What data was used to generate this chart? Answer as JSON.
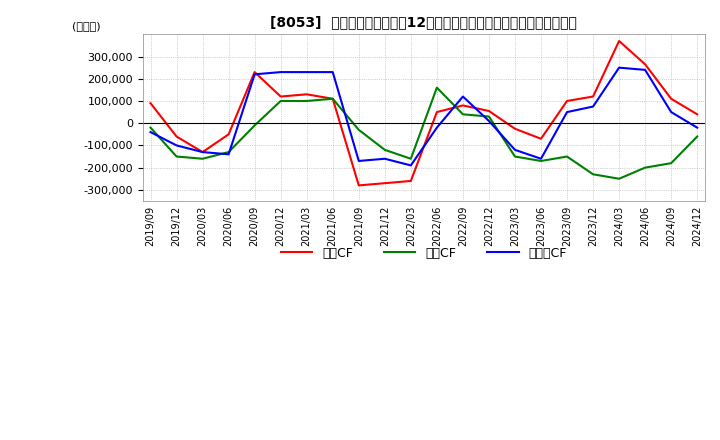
{
  "title": "[8053]  キャッシュフローの12か月移動合計の対前年同期増減額の推移",
  "ylabel": "(百万円)",
  "ylim": [
    -350000,
    400000
  ],
  "yticks": [
    -300000,
    -200000,
    -100000,
    0,
    100000,
    200000,
    300000
  ],
  "dates": [
    "2019/09",
    "2019/12",
    "2020/03",
    "2020/06",
    "2020/09",
    "2020/12",
    "2021/03",
    "2021/06",
    "2021/09",
    "2021/12",
    "2022/03",
    "2022/06",
    "2022/09",
    "2022/12",
    "2023/03",
    "2023/06",
    "2023/09",
    "2023/12",
    "2024/03",
    "2024/06",
    "2024/09",
    "2024/12"
  ],
  "operating_cf": [
    90000,
    -60000,
    -130000,
    -50000,
    230000,
    120000,
    130000,
    110000,
    -280000,
    -270000,
    -260000,
    50000,
    80000,
    55000,
    -25000,
    -70000,
    100000,
    120000,
    370000,
    265000,
    110000,
    40000
  ],
  "investing_cf": [
    -20000,
    -150000,
    -160000,
    -130000,
    -10000,
    100000,
    100000,
    110000,
    -30000,
    -120000,
    -160000,
    160000,
    40000,
    30000,
    -150000,
    -170000,
    -150000,
    -230000,
    -250000,
    -200000,
    -180000,
    -60000
  ],
  "free_cf": [
    -40000,
    -100000,
    -130000,
    -140000,
    220000,
    230000,
    230000,
    230000,
    -170000,
    -160000,
    -190000,
    -20000,
    120000,
    10000,
    -120000,
    -160000,
    50000,
    75000,
    250000,
    240000,
    50000,
    -20000
  ],
  "operating_color": "#ff0000",
  "investing_color": "#008000",
  "free_color": "#0000ff",
  "bg_color": "#ffffff",
  "grid_color": "#aaaaaa",
  "legend_labels": [
    "営業CF",
    "投賃CF",
    "フリーCF"
  ]
}
